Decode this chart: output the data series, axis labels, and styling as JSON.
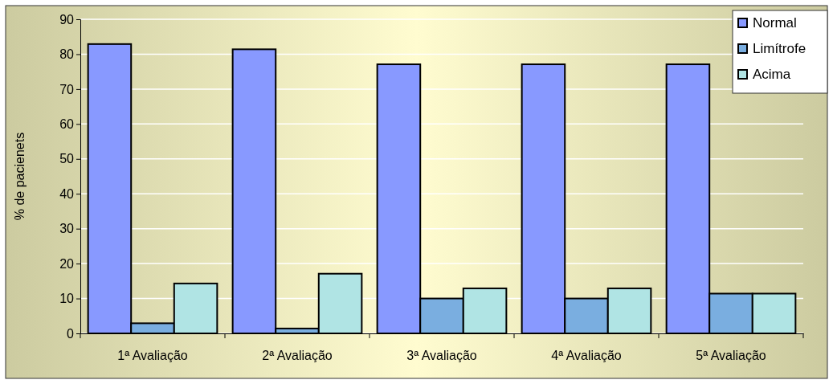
{
  "chart_data": {
    "type": "bar",
    "ylabel": "% de pacienets",
    "categories": [
      "1ª Avaliação",
      "2ª Avaliação",
      "3ª Avaliação",
      "4ª Avaliação",
      "5ª Avaliação"
    ],
    "series": [
      {
        "name": "Normal",
        "color": "#8899ff",
        "values": [
          82.9,
          81.4,
          77.1,
          77.1,
          77.1
        ]
      },
      {
        "name": "Limítrofe",
        "color": "#7aaee0",
        "values": [
          2.9,
          1.4,
          10,
          10,
          11.4
        ]
      },
      {
        "name": "Acima",
        "color": "#b0e4e4",
        "values": [
          14.3,
          17.1,
          12.9,
          12.9,
          11.4
        ]
      }
    ],
    "ylim": [
      0,
      90
    ],
    "yticks": [
      0,
      10,
      20,
      30,
      40,
      50,
      60,
      70,
      80,
      90
    ],
    "grid": "y",
    "legend": "top right"
  }
}
